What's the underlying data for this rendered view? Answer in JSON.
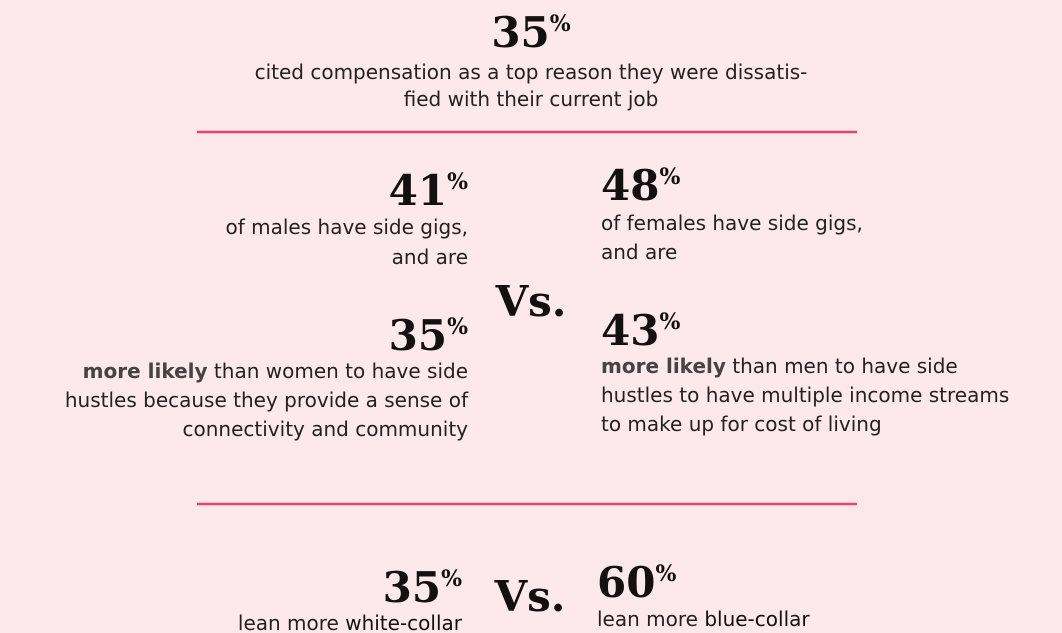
{
  "header": {
    "stat": {
      "number": "35",
      "unit": "%"
    },
    "lines": [
      "cited compensation as a top reason they were dissatis-",
      "fied with their current job"
    ]
  },
  "gigs": {
    "vs": "Vs.",
    "males": {
      "stat": {
        "number": "41",
        "unit": "%"
      },
      "lines": [
        "of males have side gigs,",
        "and are"
      ]
    },
    "females": {
      "stat": {
        "number": "48",
        "unit": "%"
      },
      "lines": [
        "of females have side gigs,",
        "and are"
      ]
    },
    "males_reason": {
      "stat": {
        "number": "35",
        "unit": "%"
      },
      "lines": [
        [
          "more likely",
          " than women to have side"
        ],
        [
          "hustles because they provide a sense of"
        ],
        [
          "connectivity and community"
        ]
      ]
    },
    "females_reason": {
      "stat": {
        "number": "43",
        "unit": "%"
      },
      "lines": [
        [
          "more likely",
          " than men to have side"
        ],
        [
          "hustles to have multiple income streams"
        ],
        [
          "to make up for cost of living"
        ]
      ]
    }
  },
  "collar": {
    "vs": "Vs.",
    "white": {
      "stat": {
        "number": "35",
        "unit": "%"
      },
      "line": [
        "lean more ",
        "white-collar"
      ]
    },
    "blue": {
      "stat": {
        "number": "60",
        "unit": "%"
      },
      "line": [
        "lean more ",
        "blue-collar"
      ]
    }
  }
}
